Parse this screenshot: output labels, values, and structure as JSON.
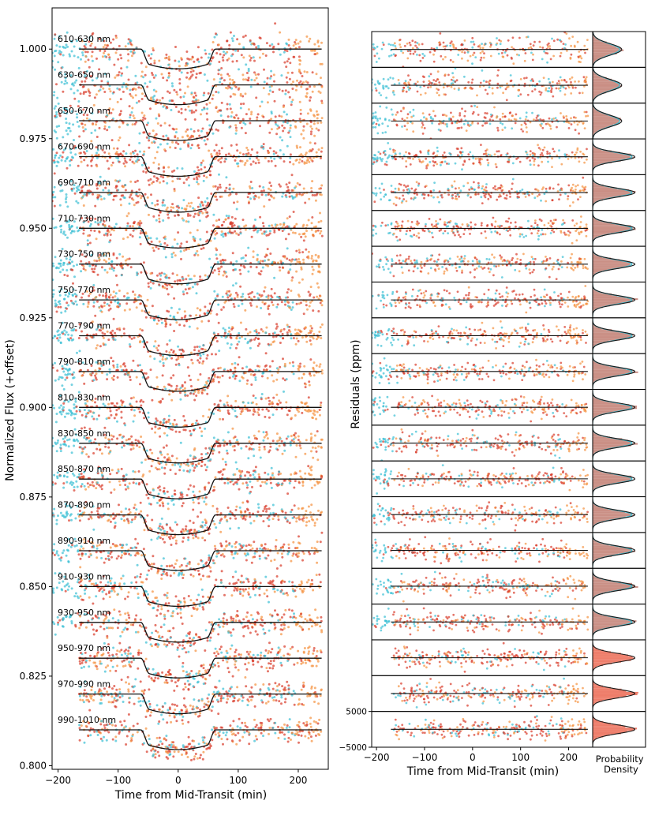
{
  "chart_data": [
    {
      "type": "scatter",
      "panel": "light-curves",
      "xlabel": "Time from Mid-Transit (min)",
      "ylabel": "Normalized Flux (+offset)",
      "xlim": [
        -210,
        250
      ],
      "ylim": [
        0.799,
        1.0115
      ],
      "x_ticks": [
        -200,
        -100,
        0,
        100,
        200
      ],
      "x_tick_labels": [
        "−200",
        "−100",
        "0",
        "100",
        "200"
      ],
      "y_ticks": [
        0.8,
        0.825,
        0.85,
        0.875,
        0.9,
        0.925,
        0.95,
        0.975,
        1.0
      ],
      "y_tick_labels": [
        "0.800",
        "0.825",
        "0.850",
        "0.875",
        "0.900",
        "0.925",
        "0.950",
        "0.975",
        "1.000"
      ],
      "offset_step": 0.01,
      "transit": {
        "ingress_start": -62,
        "ingress_end": -48,
        "egress_start": 48,
        "egress_end": 62,
        "depth": 0.0055
      },
      "series_colors": {
        "cyan": "#3bbfd4",
        "orange": "#f5923e",
        "red": "#d93a2a",
        "model": "#111111"
      },
      "series": [
        {
          "name": "610-630 nm",
          "baseline": 1.0,
          "x_range": [
            -210,
            240
          ]
        },
        {
          "name": "630-650 nm",
          "baseline": 0.99,
          "x_range": [
            -210,
            240
          ]
        },
        {
          "name": "650-670 nm",
          "baseline": 0.98,
          "x_range": [
            -210,
            240
          ]
        },
        {
          "name": "670-690 nm",
          "baseline": 0.97,
          "x_range": [
            -210,
            240
          ]
        },
        {
          "name": "690-710 nm",
          "baseline": 0.96,
          "x_range": [
            -210,
            240
          ]
        },
        {
          "name": "710-730 nm",
          "baseline": 0.95,
          "x_range": [
            -210,
            240
          ]
        },
        {
          "name": "730-750 nm",
          "baseline": 0.94,
          "x_range": [
            -210,
            240
          ]
        },
        {
          "name": "750-770 nm",
          "baseline": 0.93,
          "x_range": [
            -210,
            240
          ]
        },
        {
          "name": "770-790 nm",
          "baseline": 0.92,
          "x_range": [
            -210,
            240
          ]
        },
        {
          "name": "790-810 nm",
          "baseline": 0.91,
          "x_range": [
            -210,
            240
          ]
        },
        {
          "name": "810-830 nm",
          "baseline": 0.9,
          "x_range": [
            -210,
            240
          ]
        },
        {
          "name": "830-850 nm",
          "baseline": 0.89,
          "x_range": [
            -210,
            240
          ]
        },
        {
          "name": "850-870 nm",
          "baseline": 0.88,
          "x_range": [
            -210,
            240
          ]
        },
        {
          "name": "870-890 nm",
          "baseline": 0.87,
          "x_range": [
            -210,
            240
          ]
        },
        {
          "name": "890-910 nm",
          "baseline": 0.86,
          "x_range": [
            -210,
            240
          ]
        },
        {
          "name": "910-930 nm",
          "baseline": 0.85,
          "x_range": [
            -210,
            240
          ]
        },
        {
          "name": "930-950 nm",
          "baseline": 0.84,
          "x_range": [
            -210,
            240
          ]
        },
        {
          "name": "950-970 nm",
          "baseline": 0.83,
          "x_range": [
            -165,
            240
          ]
        },
        {
          "name": "970-990 nm",
          "baseline": 0.82,
          "x_range": [
            -165,
            240
          ]
        },
        {
          "name": "990-1010 nm",
          "baseline": 0.81,
          "x_range": [
            -165,
            240
          ]
        }
      ]
    },
    {
      "type": "scatter",
      "panel": "residuals",
      "xlabel": "Time from Mid-Transit (min)",
      "ylabel": "Residuals (ppm)",
      "xlim": [
        -210,
        250
      ],
      "ylim": [
        -5000,
        5000
      ],
      "x_ticks": [
        -200,
        -100,
        0,
        100,
        200
      ],
      "x_tick_labels": [
        "−200",
        "−100",
        "0",
        "100",
        "200"
      ],
      "y_ticks": [
        -5000,
        5000
      ],
      "y_tick_labels": [
        "−5000",
        "5000"
      ],
      "n_subpanels": 20
    },
    {
      "type": "histogram",
      "panel": "residual-distributions",
      "xlabel": "Probability\nDensity",
      "n_subpanels": 20
    }
  ]
}
